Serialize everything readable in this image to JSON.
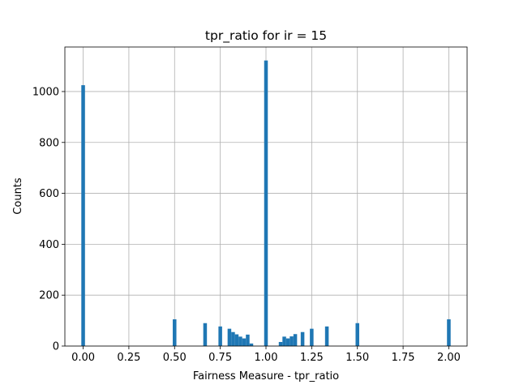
{
  "chart_data": {
    "type": "bar",
    "title": "tpr_ratio for ir = 15",
    "xlabel": "Fairness Measure - tpr_ratio",
    "ylabel": "Counts",
    "xlim": [
      -0.1,
      2.1
    ],
    "ylim": [
      0,
      1175
    ],
    "grid": true,
    "color": "#1f77b4",
    "xticks": [
      0.0,
      0.25,
      0.5,
      0.75,
      1.0,
      1.25,
      1.5,
      1.75,
      2.0
    ],
    "xtick_labels": [
      "0.00",
      "0.25",
      "0.50",
      "0.75",
      "1.00",
      "1.25",
      "1.50",
      "1.75",
      "2.00"
    ],
    "yticks": [
      0,
      200,
      400,
      600,
      800,
      1000
    ],
    "ytick_labels": [
      "0",
      "200",
      "400",
      "600",
      "800",
      "1000"
    ],
    "bin_width": 0.02,
    "bins": [
      {
        "x": 0.0,
        "count": 1025
      },
      {
        "x": 0.5,
        "count": 105
      },
      {
        "x": 0.667,
        "count": 90
      },
      {
        "x": 0.75,
        "count": 77
      },
      {
        "x": 0.8,
        "count": 68
      },
      {
        "x": 0.82,
        "count": 55
      },
      {
        "x": 0.84,
        "count": 46
      },
      {
        "x": 0.86,
        "count": 37
      },
      {
        "x": 0.88,
        "count": 30
      },
      {
        "x": 0.9,
        "count": 45
      },
      {
        "x": 0.92,
        "count": 10
      },
      {
        "x": 1.0,
        "count": 1122
      },
      {
        "x": 1.08,
        "count": 16
      },
      {
        "x": 1.1,
        "count": 37
      },
      {
        "x": 1.12,
        "count": 30
      },
      {
        "x": 1.14,
        "count": 38
      },
      {
        "x": 1.16,
        "count": 47
      },
      {
        "x": 1.2,
        "count": 55
      },
      {
        "x": 1.25,
        "count": 68
      },
      {
        "x": 1.333,
        "count": 77
      },
      {
        "x": 1.5,
        "count": 90
      },
      {
        "x": 2.0,
        "count": 105
      }
    ]
  }
}
